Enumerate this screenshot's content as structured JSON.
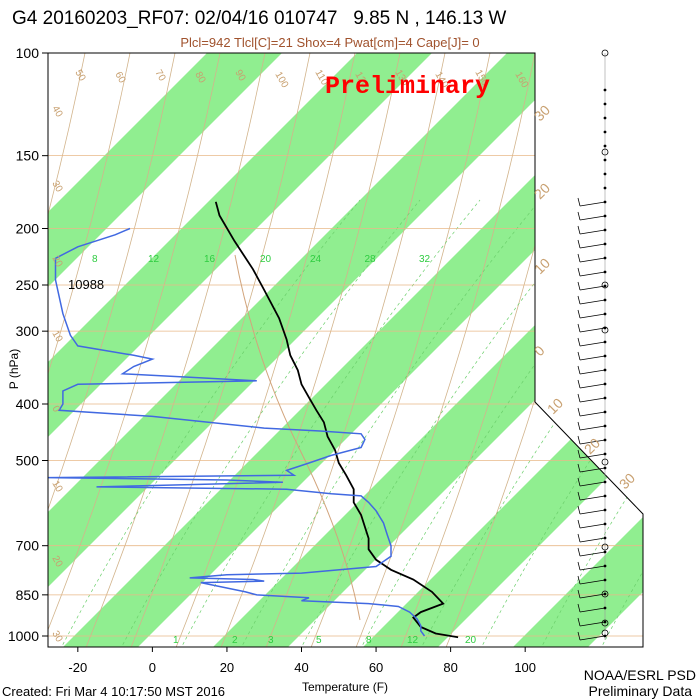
{
  "title": "G4 20160203_RF07: 02/04/16 010747   9.85 N , 146.13 W",
  "subtitle": "Plcl=942 Tlcl[C]=21 Shox=4 Pwat[cm]=4 Cape[J]= 0",
  "created": "Created: Fri Mar  4 10:17:50 MST 2016",
  "credit_line1": "NOAA/ESRL PSD",
  "credit_line2": "Preliminary Data",
  "watermark": "Preliminary",
  "colors": {
    "band": "#90ee90",
    "temperature": "#000000",
    "dewpoint": "#4169e1",
    "theta": "#d2b48c",
    "mixing": "#2ecc40",
    "watermark": "#ff0000"
  },
  "chart_data": {
    "type": "line",
    "title": "G4 20160203_RF07: 02/04/16 010747   9.85 N , 146.13 W",
    "xlabel": "Temperature (F)",
    "ylabel": "P (hPa)",
    "xlim": [
      -28,
      108
    ],
    "ylim": [
      1050,
      100
    ],
    "y_scale": "log",
    "x_ticks": [
      "-20",
      "0",
      "20",
      "40",
      "60",
      "80",
      "100"
    ],
    "y_ticks": [
      "100",
      "150",
      "200",
      "250",
      "300",
      "400",
      "500",
      "700",
      "850",
      "1000"
    ],
    "height_label": "10988",
    "mixing_ratio_labels_upper": [
      "8",
      "12",
      "16",
      "20",
      "24",
      "28",
      "32"
    ],
    "mixing_ratio_labels_lower": [
      "1",
      "2",
      "3",
      "5",
      "8",
      "12",
      "20"
    ],
    "theta_labels": [
      "50",
      "60",
      "70",
      "80",
      "90",
      "100",
      "110",
      "120",
      "130",
      "140",
      "150",
      "160"
    ],
    "theta_e_labels": [
      "30",
      "20",
      "10",
      "0",
      "10",
      "20",
      "30"
    ],
    "left_edge_labels": [
      "40",
      "30",
      "20",
      "10",
      "0",
      "10",
      "20",
      "30"
    ],
    "series": [
      {
        "name": "Temperature",
        "points": [
          [
            82,
            1005
          ],
          [
            76,
            990
          ],
          [
            72,
            965
          ],
          [
            70,
            930
          ],
          [
            72,
            910
          ],
          [
            78,
            880
          ],
          [
            75,
            840
          ],
          [
            70,
            800
          ],
          [
            64,
            770
          ],
          [
            60,
            740
          ],
          [
            58,
            710
          ],
          [
            58,
            680
          ],
          [
            57,
            650
          ],
          [
            56,
            620
          ],
          [
            54,
            590
          ],
          [
            54,
            560
          ],
          [
            52,
            530
          ],
          [
            50,
            505
          ],
          [
            49,
            480
          ],
          [
            47,
            455
          ],
          [
            46,
            430
          ],
          [
            44,
            410
          ],
          [
            42,
            390
          ],
          [
            40,
            370
          ],
          [
            39,
            350
          ],
          [
            37,
            330
          ],
          [
            36,
            310
          ],
          [
            34,
            285
          ],
          [
            30,
            255
          ],
          [
            27,
            235
          ],
          [
            22,
            210
          ],
          [
            18,
            190
          ],
          [
            17,
            180
          ]
        ]
      },
      {
        "name": "Dewpoint",
        "points": [
          [
            73,
            1000
          ],
          [
            72,
            980
          ],
          [
            72,
            960
          ],
          [
            71,
            935
          ],
          [
            69,
            910
          ],
          [
            66,
            890
          ],
          [
            58,
            880
          ],
          [
            40,
            870
          ],
          [
            42,
            860
          ],
          [
            28,
            850
          ],
          [
            25,
            840
          ],
          [
            13,
            810
          ],
          [
            30,
            805
          ],
          [
            27,
            800
          ],
          [
            10,
            795
          ],
          [
            20,
            785
          ],
          [
            40,
            780
          ],
          [
            60,
            760
          ],
          [
            64,
            730
          ],
          [
            64,
            700
          ],
          [
            63,
            670
          ],
          [
            62,
            640
          ],
          [
            60,
            610
          ],
          [
            58,
            590
          ],
          [
            56,
            575
          ],
          [
            48,
            570
          ],
          [
            36,
            560
          ],
          [
            -15,
            555
          ],
          [
            10,
            550
          ],
          [
            35,
            545
          ],
          [
            20,
            540
          ],
          [
            -28,
            535
          ],
          [
            38,
            530
          ],
          [
            36,
            520
          ],
          [
            42,
            505
          ],
          [
            48,
            490
          ],
          [
            56,
            475
          ],
          [
            57,
            460
          ],
          [
            56,
            450
          ],
          [
            45,
            445
          ],
          [
            30,
            440
          ],
          [
            0,
            420
          ],
          [
            -25,
            410
          ],
          [
            -24,
            400
          ],
          [
            -24,
            380
          ],
          [
            -20,
            370
          ],
          [
            28,
            365
          ],
          [
            10,
            360
          ],
          [
            -8,
            355
          ],
          [
            -5,
            345
          ],
          [
            0,
            335
          ],
          [
            -5,
            330
          ],
          [
            -20,
            318
          ],
          [
            -22,
            305
          ],
          [
            -24,
            280
          ],
          [
            -26,
            245
          ],
          [
            -26,
            225
          ],
          [
            -20,
            215
          ],
          [
            -10,
            205
          ],
          [
            -6,
            200
          ]
        ]
      }
    ]
  }
}
